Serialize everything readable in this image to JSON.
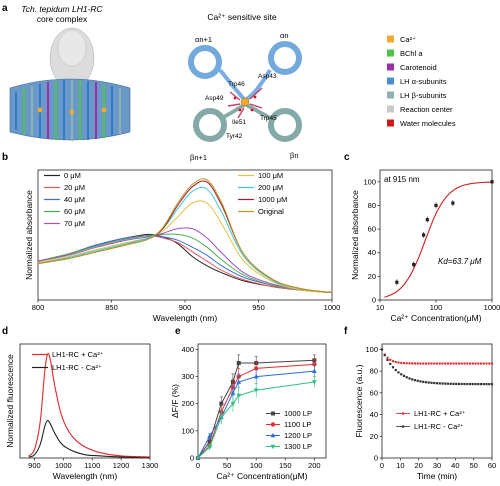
{
  "panel_letters": [
    "a",
    "b",
    "c",
    "d",
    "e",
    "f"
  ],
  "panel_a": {
    "left_title_line1": "Tch. tepidum LH1-RC",
    "left_title_line2": "core complex",
    "right_title": "Ca²⁺ sensitive site",
    "structure_labels": [
      "αn+1",
      "αn",
      "βn+1",
      "βn",
      "Asp43",
      "Trp46",
      "Asp49",
      "Ile51",
      "Trp45",
      "Tyr42"
    ],
    "legend": [
      {
        "label": "Ca²⁺",
        "color": "#f0a830"
      },
      {
        "label": "BChl a",
        "color": "#4fc24f"
      },
      {
        "label": "Carotenoid",
        "color": "#9b2fa8"
      },
      {
        "label": "LH α-subunits",
        "color": "#4a90d0"
      },
      {
        "label": "LH β-subunits",
        "color": "#8fb3b3"
      },
      {
        "label": "Reaction center",
        "color": "#c8c8c8"
      },
      {
        "label": "Water molecules",
        "color": "#d01818"
      }
    ]
  },
  "chart_data": [
    {
      "id": "b",
      "type": "line",
      "xlabel": "Wavelength (nm)",
      "ylabel": "Normalized absorbance",
      "xlim": [
        800,
        1000
      ],
      "xticks": [
        800,
        850,
        900,
        950,
        1000
      ],
      "legend": "top",
      "series": [
        {
          "name": "0 μM",
          "color": "#222222",
          "x": [
            800,
            820,
            840,
            860,
            875,
            885,
            895,
            905,
            915,
            925,
            940,
            960,
            980,
            1000
          ],
          "y": [
            0.3,
            0.36,
            0.44,
            0.5,
            0.53,
            0.51,
            0.45,
            0.34,
            0.26,
            0.2,
            0.13,
            0.08,
            0.05,
            0.03
          ]
        },
        {
          "name": "20 μM",
          "color": "#e8545a",
          "x": [
            800,
            820,
            840,
            860,
            875,
            885,
            895,
            905,
            915,
            925,
            940,
            960,
            980,
            1000
          ],
          "y": [
            0.3,
            0.36,
            0.44,
            0.5,
            0.52,
            0.5,
            0.46,
            0.38,
            0.3,
            0.22,
            0.14,
            0.08,
            0.05,
            0.03
          ]
        },
        {
          "name": "40 μM",
          "color": "#3a6fd8",
          "x": [
            800,
            820,
            840,
            860,
            875,
            885,
            895,
            905,
            915,
            925,
            940,
            960,
            980,
            1000
          ],
          "y": [
            0.3,
            0.36,
            0.44,
            0.5,
            0.52,
            0.51,
            0.48,
            0.42,
            0.35,
            0.26,
            0.16,
            0.09,
            0.05,
            0.03
          ]
        },
        {
          "name": "60 μM",
          "color": "#4caf50",
          "x": [
            800,
            820,
            840,
            860,
            875,
            885,
            895,
            905,
            915,
            925,
            940,
            960,
            980,
            1000
          ],
          "y": [
            0.3,
            0.36,
            0.43,
            0.49,
            0.52,
            0.53,
            0.53,
            0.5,
            0.42,
            0.31,
            0.18,
            0.09,
            0.05,
            0.03
          ]
        },
        {
          "name": "70 μM",
          "color": "#a050c8",
          "x": [
            800,
            820,
            840,
            860,
            875,
            885,
            895,
            905,
            915,
            925,
            940,
            960,
            980,
            1000
          ],
          "y": [
            0.3,
            0.35,
            0.42,
            0.48,
            0.51,
            0.54,
            0.58,
            0.58,
            0.5,
            0.37,
            0.2,
            0.1,
            0.05,
            0.03
          ]
        },
        {
          "name": "100 μM",
          "color": "#e0c040",
          "x": [
            800,
            820,
            840,
            860,
            875,
            885,
            895,
            905,
            915,
            925,
            940,
            960,
            980,
            1000
          ],
          "y": [
            0.29,
            0.34,
            0.4,
            0.46,
            0.5,
            0.56,
            0.68,
            0.8,
            0.8,
            0.62,
            0.3,
            0.12,
            0.05,
            0.03
          ]
        },
        {
          "name": "200 μM",
          "color": "#40c8d8",
          "x": [
            800,
            820,
            840,
            860,
            875,
            885,
            895,
            905,
            915,
            925,
            940,
            960,
            980,
            1000
          ],
          "y": [
            0.28,
            0.33,
            0.39,
            0.45,
            0.5,
            0.58,
            0.75,
            0.9,
            0.92,
            0.72,
            0.34,
            0.13,
            0.06,
            0.03
          ]
        },
        {
          "name": "1000 μM",
          "color": "#a81830",
          "x": [
            800,
            820,
            840,
            860,
            875,
            885,
            895,
            905,
            915,
            925,
            940,
            960,
            980,
            1000
          ],
          "y": [
            0.28,
            0.32,
            0.38,
            0.44,
            0.49,
            0.58,
            0.78,
            0.94,
            0.98,
            0.78,
            0.36,
            0.14,
            0.06,
            0.03
          ]
        },
        {
          "name": "Original",
          "color": "#b89a20",
          "x": [
            800,
            820,
            840,
            860,
            875,
            885,
            895,
            905,
            915,
            925,
            940,
            960,
            980,
            1000
          ],
          "y": [
            0.28,
            0.32,
            0.38,
            0.44,
            0.49,
            0.59,
            0.8,
            0.96,
            1.0,
            0.8,
            0.36,
            0.14,
            0.06,
            0.03
          ]
        }
      ]
    },
    {
      "id": "c",
      "type": "scatter",
      "xlabel": "Ca²⁺ Concentration(μM)",
      "ylabel": "Normalized absorbance",
      "xscale": "log",
      "xlim": [
        10,
        1000
      ],
      "ylim": [
        0,
        110
      ],
      "yticks": [
        0,
        20,
        40,
        60,
        80,
        100
      ],
      "annotation_top": "at 915 nm",
      "annotation_kd": "Kd=63.7 μM",
      "points": {
        "x": [
          20,
          40,
          60,
          70,
          100,
          200,
          1000
        ],
        "y": [
          15,
          30,
          55,
          68,
          80,
          82,
          100
        ]
      },
      "fit": {
        "color": "#d02020",
        "kd": 63.7,
        "n": 2.2
      }
    },
    {
      "id": "d",
      "type": "line",
      "xlabel": "Wavelength (nm)",
      "ylabel": "Normalized fluorescence",
      "xlim": [
        850,
        1300
      ],
      "xticks": [
        900,
        1000,
        1100,
        1200,
        1300
      ],
      "ylim": [
        0,
        1.1
      ],
      "legend": "top-right",
      "series": [
        {
          "name": "LH1-RC + Ca²⁺",
          "color": "#e02828",
          "x": [
            880,
            900,
            920,
            935,
            945,
            955,
            970,
            990,
            1010,
            1040,
            1080,
            1130,
            1200,
            1300
          ],
          "y": [
            0.02,
            0.08,
            0.35,
            0.82,
            1.0,
            0.95,
            0.7,
            0.45,
            0.3,
            0.18,
            0.1,
            0.05,
            0.02,
            0.01
          ]
        },
        {
          "name": "LH1-RC - Ca²⁺",
          "color": "#222222",
          "x": [
            880,
            900,
            920,
            935,
            945,
            955,
            970,
            990,
            1010,
            1040,
            1080,
            1130,
            1200,
            1300
          ],
          "y": [
            0.01,
            0.03,
            0.13,
            0.3,
            0.36,
            0.33,
            0.24,
            0.15,
            0.1,
            0.06,
            0.03,
            0.02,
            0.01,
            0.0
          ]
        }
      ]
    },
    {
      "id": "e",
      "type": "line",
      "xlabel": "Ca²⁺ Concentration(μM)",
      "ylabel": "ΔF/F (%)",
      "xlim": [
        0,
        220
      ],
      "xticks": [
        0,
        50,
        100,
        150,
        200
      ],
      "ylim": [
        0,
        420
      ],
      "yticks": [
        0,
        100,
        200,
        300,
        400
      ],
      "legend": "bottom-right",
      "series": [
        {
          "name": "1000 LP",
          "color": "#444444",
          "marker": "square",
          "x": [
            0,
            20,
            40,
            60,
            70,
            100,
            200
          ],
          "y": [
            0,
            60,
            200,
            280,
            350,
            350,
            360
          ],
          "err": [
            0,
            10,
            25,
            30,
            30,
            25,
            20
          ]
        },
        {
          "name": "1100 LP",
          "color": "#e03030",
          "marker": "circle",
          "x": [
            0,
            20,
            40,
            60,
            70,
            100,
            200
          ],
          "y": [
            0,
            45,
            170,
            260,
            300,
            330,
            345
          ],
          "err": [
            0,
            10,
            25,
            30,
            30,
            25,
            20
          ]
        },
        {
          "name": "1200 LP",
          "color": "#2a6fd8",
          "marker": "triangle",
          "x": [
            0,
            20,
            40,
            60,
            70,
            100,
            200
          ],
          "y": [
            0,
            80,
            150,
            240,
            280,
            300,
            320
          ],
          "err": [
            0,
            10,
            25,
            30,
            30,
            25,
            20
          ]
        },
        {
          "name": "1300 LP",
          "color": "#30c080",
          "marker": "triangle-down",
          "x": [
            0,
            20,
            40,
            60,
            70,
            100,
            200
          ],
          "y": [
            0,
            40,
            150,
            200,
            230,
            250,
            280
          ],
          "err": [
            0,
            10,
            25,
            30,
            30,
            25,
            20
          ]
        }
      ]
    },
    {
      "id": "f",
      "type": "scatter",
      "xlabel": "Time (min)",
      "ylabel": "Fluorescence (a.u.)",
      "xlim": [
        0,
        60
      ],
      "xticks": [
        0,
        10,
        20,
        30,
        40,
        50,
        60
      ],
      "ylim": [
        0,
        105
      ],
      "yticks": [
        0,
        20,
        40,
        60,
        80,
        100
      ],
      "legend": "bottom-right",
      "series": [
        {
          "name": "LH1-RC + Ca²⁺",
          "color": "#e02828",
          "marker": "circle-small",
          "start": 100,
          "end": 87,
          "rate": 0.3
        },
        {
          "name": "LH1-RC - Ca²⁺",
          "color": "#333333",
          "marker": "square-small",
          "start": 100,
          "end": 68,
          "rate": 0.12
        }
      ]
    }
  ]
}
